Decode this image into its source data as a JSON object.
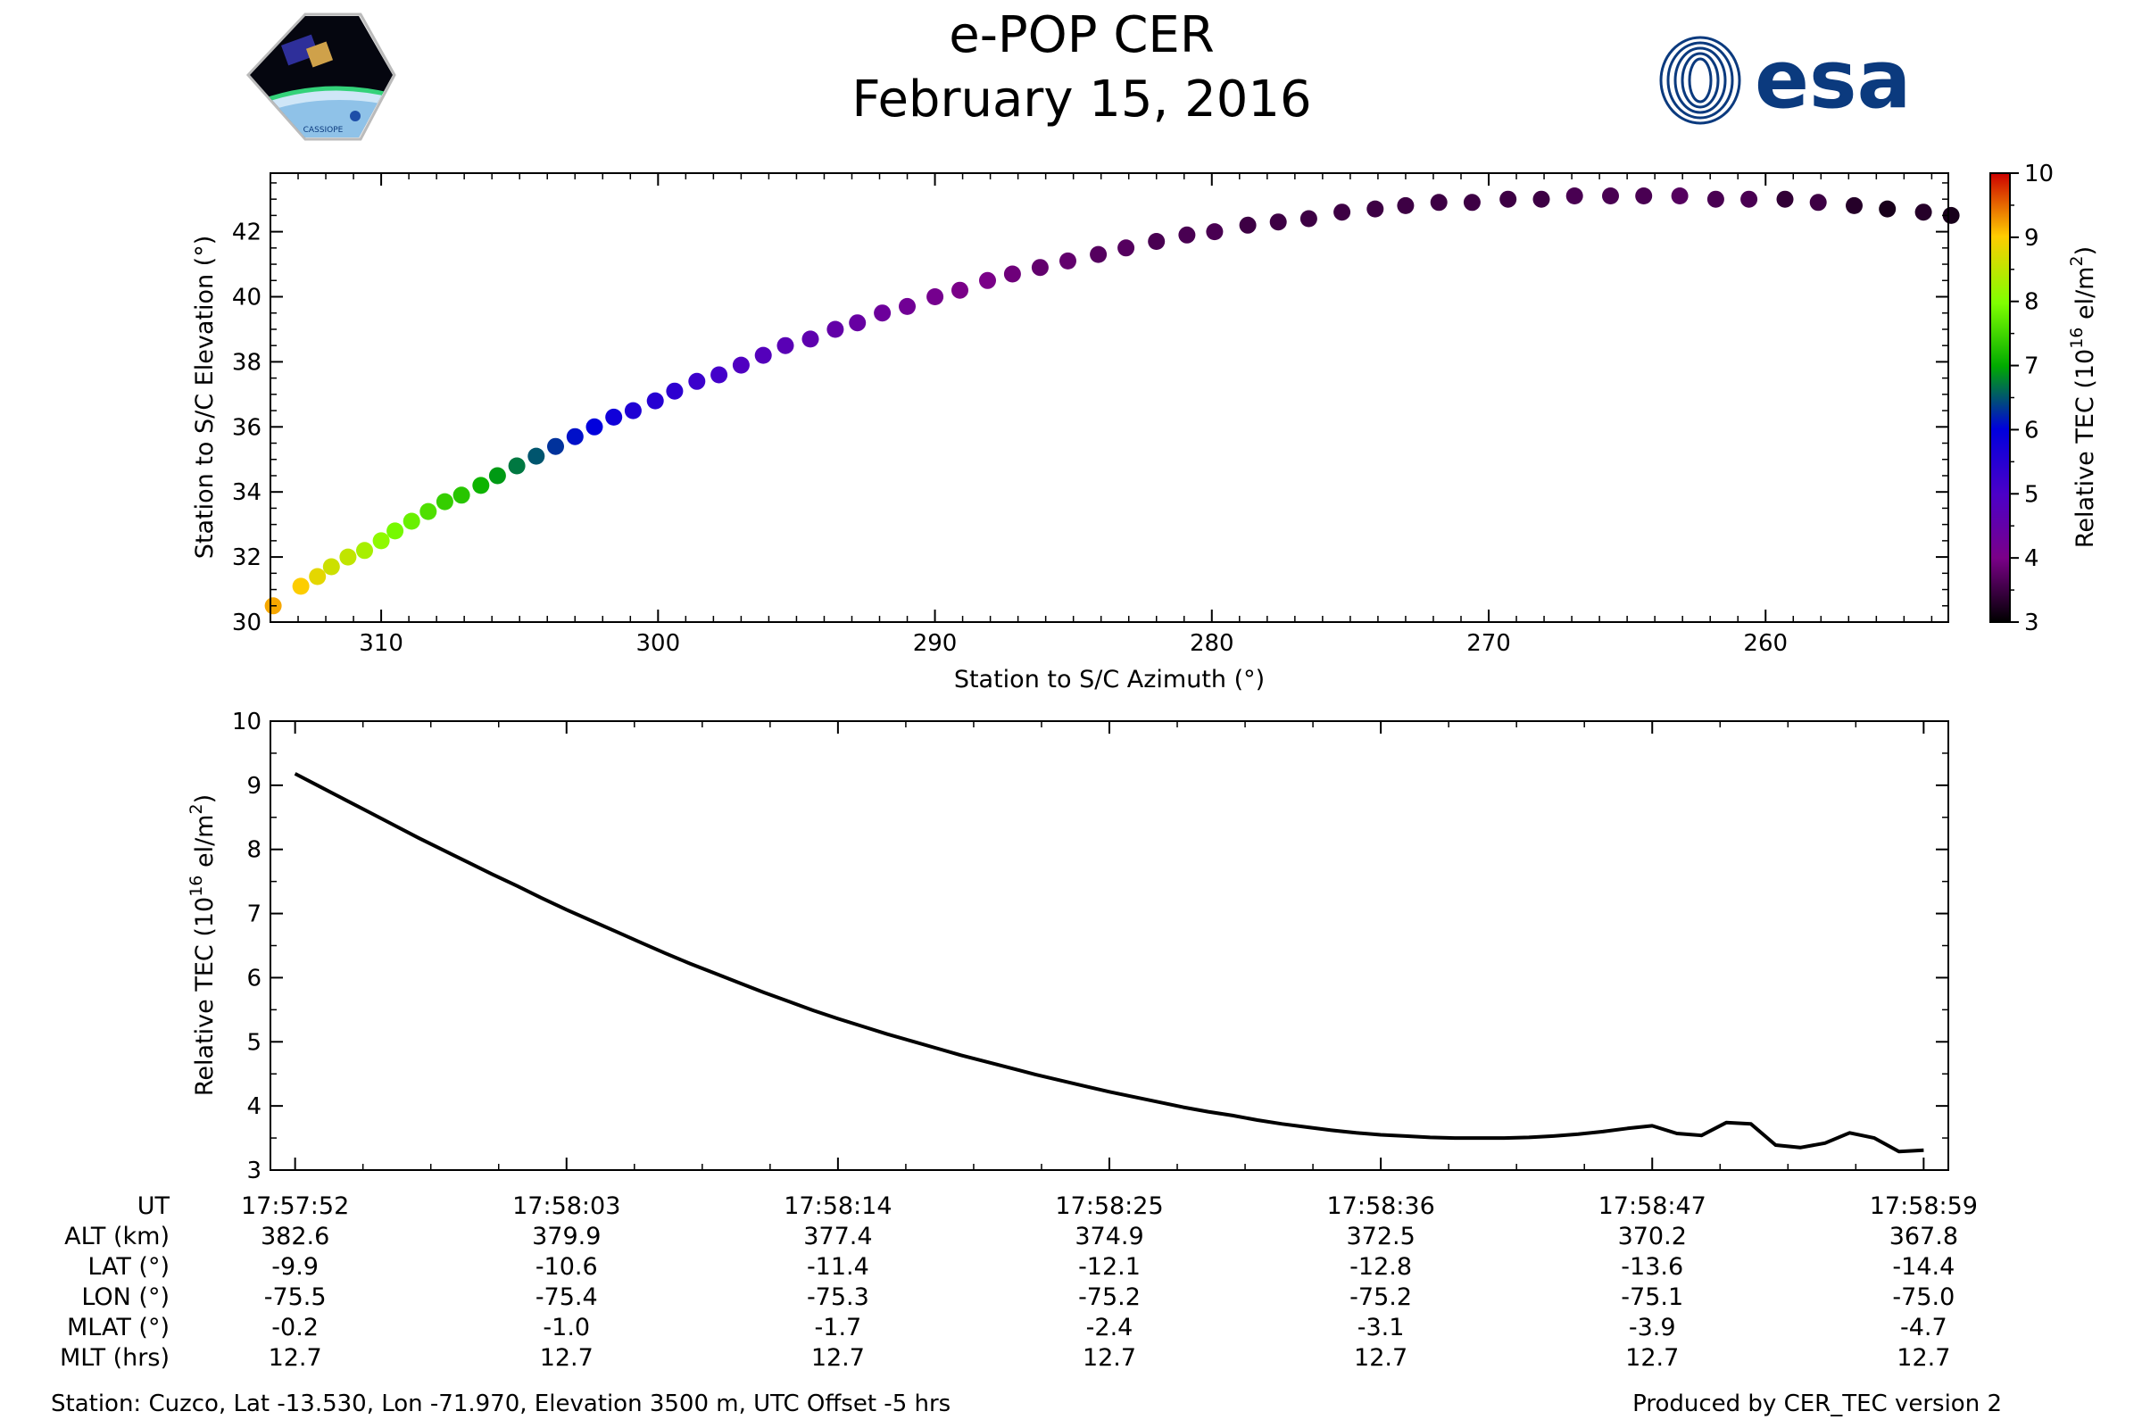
{
  "header": {
    "title": "e-POP CER",
    "date": "February 15, 2016",
    "left_logo": {
      "icon": "cassiope-mission-logo",
      "text": "CASSIOPE"
    },
    "right_logo": {
      "icon": "esa-logo",
      "text": "esa",
      "color": "#0b3a7e"
    }
  },
  "chart_data": [
    {
      "type": "scatter",
      "name": "elevation-vs-azimuth",
      "xlabel": "Station to S/C Azimuth (°)",
      "ylabel": "Station to S/C Elevation (°)",
      "xlim": [
        314,
        253.4
      ],
      "ylim": [
        30,
        43.8
      ],
      "xticks": [
        310,
        300,
        290,
        280,
        270,
        260
      ],
      "yticks": [
        30,
        32,
        34,
        36,
        38,
        40,
        42
      ],
      "color_encoding": "Relative TEC",
      "points": [
        {
          "az": 313.9,
          "el": 30.5,
          "tec": 9.2
        },
        {
          "az": 312.9,
          "el": 31.1,
          "tec": 9.0
        },
        {
          "az": 312.3,
          "el": 31.4,
          "tec": 8.8
        },
        {
          "az": 311.8,
          "el": 31.7,
          "tec": 8.6
        },
        {
          "az": 311.2,
          "el": 32.0,
          "tec": 8.5
        },
        {
          "az": 310.6,
          "el": 32.2,
          "tec": 8.3
        },
        {
          "az": 310.0,
          "el": 32.5,
          "tec": 8.1
        },
        {
          "az": 309.5,
          "el": 32.8,
          "tec": 7.9
        },
        {
          "az": 308.9,
          "el": 33.1,
          "tec": 7.8
        },
        {
          "az": 308.3,
          "el": 33.4,
          "tec": 7.6
        },
        {
          "az": 307.7,
          "el": 33.7,
          "tec": 7.4
        },
        {
          "az": 307.1,
          "el": 33.9,
          "tec": 7.3
        },
        {
          "az": 306.4,
          "el": 34.2,
          "tec": 7.1
        },
        {
          "az": 305.8,
          "el": 34.5,
          "tec": 6.9
        },
        {
          "az": 305.1,
          "el": 34.8,
          "tec": 6.7
        },
        {
          "az": 304.4,
          "el": 35.1,
          "tec": 6.5
        },
        {
          "az": 303.7,
          "el": 35.4,
          "tec": 6.3
        },
        {
          "az": 303.0,
          "el": 35.7,
          "tec": 6.1
        },
        {
          "az": 302.3,
          "el": 36.0,
          "tec": 6.0
        },
        {
          "az": 301.6,
          "el": 36.3,
          "tec": 5.8
        },
        {
          "az": 300.9,
          "el": 36.5,
          "tec": 5.6
        },
        {
          "az": 300.1,
          "el": 36.8,
          "tec": 5.5
        },
        {
          "az": 299.4,
          "el": 37.1,
          "tec": 5.4
        },
        {
          "az": 298.6,
          "el": 37.4,
          "tec": 5.2
        },
        {
          "az": 297.8,
          "el": 37.6,
          "tec": 5.1
        },
        {
          "az": 297.0,
          "el": 37.9,
          "tec": 4.9
        },
        {
          "az": 296.2,
          "el": 38.2,
          "tec": 4.8
        },
        {
          "az": 295.4,
          "el": 38.5,
          "tec": 4.7
        },
        {
          "az": 294.5,
          "el": 38.7,
          "tec": 4.6
        },
        {
          "az": 293.6,
          "el": 39.0,
          "tec": 4.5
        },
        {
          "az": 292.8,
          "el": 39.2,
          "tec": 4.4
        },
        {
          "az": 291.9,
          "el": 39.5,
          "tec": 4.3
        },
        {
          "az": 291.0,
          "el": 39.7,
          "tec": 4.2
        },
        {
          "az": 290.0,
          "el": 40.0,
          "tec": 4.1
        },
        {
          "az": 289.1,
          "el": 40.2,
          "tec": 4.0
        },
        {
          "az": 288.1,
          "el": 40.5,
          "tec": 4.0
        },
        {
          "az": 287.2,
          "el": 40.7,
          "tec": 3.9
        },
        {
          "az": 286.2,
          "el": 40.9,
          "tec": 3.8
        },
        {
          "az": 285.2,
          "el": 41.1,
          "tec": 3.8
        },
        {
          "az": 284.1,
          "el": 41.3,
          "tec": 3.7
        },
        {
          "az": 283.1,
          "el": 41.5,
          "tec": 3.7
        },
        {
          "az": 282.0,
          "el": 41.7,
          "tec": 3.6
        },
        {
          "az": 280.9,
          "el": 41.9,
          "tec": 3.6
        },
        {
          "az": 279.9,
          "el": 42.0,
          "tec": 3.6
        },
        {
          "az": 278.7,
          "el": 42.2,
          "tec": 3.5
        },
        {
          "az": 277.6,
          "el": 42.3,
          "tec": 3.5
        },
        {
          "az": 276.5,
          "el": 42.4,
          "tec": 3.5
        },
        {
          "az": 275.3,
          "el": 42.6,
          "tec": 3.5
        },
        {
          "az": 274.1,
          "el": 42.7,
          "tec": 3.5
        },
        {
          "az": 273.0,
          "el": 42.8,
          "tec": 3.5
        },
        {
          "az": 271.8,
          "el": 42.9,
          "tec": 3.5
        },
        {
          "az": 270.6,
          "el": 42.9,
          "tec": 3.5
        },
        {
          "az": 269.3,
          "el": 43.0,
          "tec": 3.5
        },
        {
          "az": 268.1,
          "el": 43.0,
          "tec": 3.5
        },
        {
          "az": 266.9,
          "el": 43.1,
          "tec": 3.6
        },
        {
          "az": 265.6,
          "el": 43.1,
          "tec": 3.6
        },
        {
          "az": 264.4,
          "el": 43.1,
          "tec": 3.6
        },
        {
          "az": 263.1,
          "el": 43.1,
          "tec": 3.7
        },
        {
          "az": 261.8,
          "el": 43.0,
          "tec": 3.6
        },
        {
          "az": 260.6,
          "el": 43.0,
          "tec": 3.6
        },
        {
          "az": 259.3,
          "el": 43.0,
          "tec": 3.4
        },
        {
          "az": 258.1,
          "el": 42.9,
          "tec": 3.5
        },
        {
          "az": 256.8,
          "el": 42.8,
          "tec": 3.3
        },
        {
          "az": 255.6,
          "el": 42.7,
          "tec": 3.2
        },
        {
          "az": 254.3,
          "el": 42.6,
          "tec": 3.3
        },
        {
          "az": 253.3,
          "el": 42.5,
          "tec": 3.2
        }
      ]
    },
    {
      "type": "line",
      "name": "relative-tec-vs-time",
      "xlabel": "",
      "ylabel": "Relative TEC (10^16 el/m^2)",
      "ylim": [
        3,
        10
      ],
      "yticks": [
        3,
        4,
        5,
        6,
        7,
        8,
        9,
        10
      ],
      "time_range_s": [
        -1,
        67
      ],
      "series": [
        {
          "name": "Relative TEC",
          "x_seconds": [
            0,
            1,
            2,
            3,
            4,
            5,
            6,
            7,
            8,
            9,
            10,
            11,
            12,
            13,
            14,
            15,
            16,
            17,
            18,
            19,
            20,
            21,
            22,
            23,
            24,
            25,
            26,
            27,
            28,
            29,
            30,
            31,
            32,
            33,
            34,
            35,
            36,
            37,
            38,
            39,
            40,
            41,
            42,
            43,
            44,
            45,
            46,
            47,
            48,
            49,
            50,
            51,
            52,
            53,
            54,
            55,
            56,
            57,
            58,
            59,
            60,
            61,
            62,
            63,
            64,
            65,
            66
          ],
          "values": [
            9.18,
            8.98,
            8.78,
            8.58,
            8.38,
            8.18,
            7.99,
            7.8,
            7.61,
            7.43,
            7.24,
            7.06,
            6.89,
            6.72,
            6.55,
            6.38,
            6.22,
            6.07,
            5.92,
            5.77,
            5.63,
            5.49,
            5.36,
            5.24,
            5.12,
            5.01,
            4.9,
            4.79,
            4.69,
            4.59,
            4.49,
            4.4,
            4.31,
            4.22,
            4.14,
            4.06,
            3.98,
            3.91,
            3.85,
            3.78,
            3.72,
            3.67,
            3.62,
            3.58,
            3.55,
            3.53,
            3.51,
            3.5,
            3.5,
            3.5,
            3.51,
            3.53,
            3.56,
            3.6,
            3.65,
            3.69,
            3.57,
            3.54,
            3.74,
            3.72,
            3.39,
            3.35,
            3.42,
            3.58,
            3.5,
            3.29,
            3.31
          ]
        }
      ]
    },
    {
      "type": "colorbar",
      "name": "tec-colorbar",
      "label": "Relative TEC (10^16 el/m^2)",
      "range": [
        3,
        10
      ],
      "ticks": [
        3,
        4,
        5,
        6,
        7,
        8,
        9,
        10
      ],
      "colormap": "nipy_spectral"
    }
  ],
  "tec_label": {
    "prefix": "Relative TEC (10",
    "exponent": "16",
    "middle": " el/m",
    "power": "2",
    "suffix": ")"
  },
  "ephemeris": {
    "row_labels": [
      "UT",
      "ALT (km)",
      "LAT (°)",
      "LON (°)",
      "MLAT (°)",
      "MLT (hrs)"
    ],
    "columns": [
      {
        "t_s": 0,
        "values": [
          "17:57:52",
          "382.6",
          "-9.9",
          "-75.5",
          "-0.2",
          "12.7"
        ]
      },
      {
        "t_s": 11,
        "values": [
          "17:58:03",
          "379.9",
          "-10.6",
          "-75.4",
          "-1.0",
          "12.7"
        ]
      },
      {
        "t_s": 22,
        "values": [
          "17:58:14",
          "377.4",
          "-11.4",
          "-75.3",
          "-1.7",
          "12.7"
        ]
      },
      {
        "t_s": 33,
        "values": [
          "17:58:25",
          "374.9",
          "-12.1",
          "-75.2",
          "-2.4",
          "12.7"
        ]
      },
      {
        "t_s": 44,
        "values": [
          "17:58:36",
          "372.5",
          "-12.8",
          "-75.2",
          "-3.1",
          "12.7"
        ]
      },
      {
        "t_s": 55,
        "values": [
          "17:58:47",
          "370.2",
          "-13.6",
          "-75.1",
          "-3.9",
          "12.7"
        ]
      },
      {
        "t_s": 66,
        "values": [
          "17:58:59",
          "367.8",
          "-14.4",
          "-75.0",
          "-4.7",
          "12.7"
        ]
      }
    ]
  },
  "footer": {
    "station": "Station: Cuzco, Lat -13.530, Lon -71.970, Elevation 3500 m, UTC Offset -5 hrs",
    "produced_by": "Produced by CER_TEC version 2"
  }
}
